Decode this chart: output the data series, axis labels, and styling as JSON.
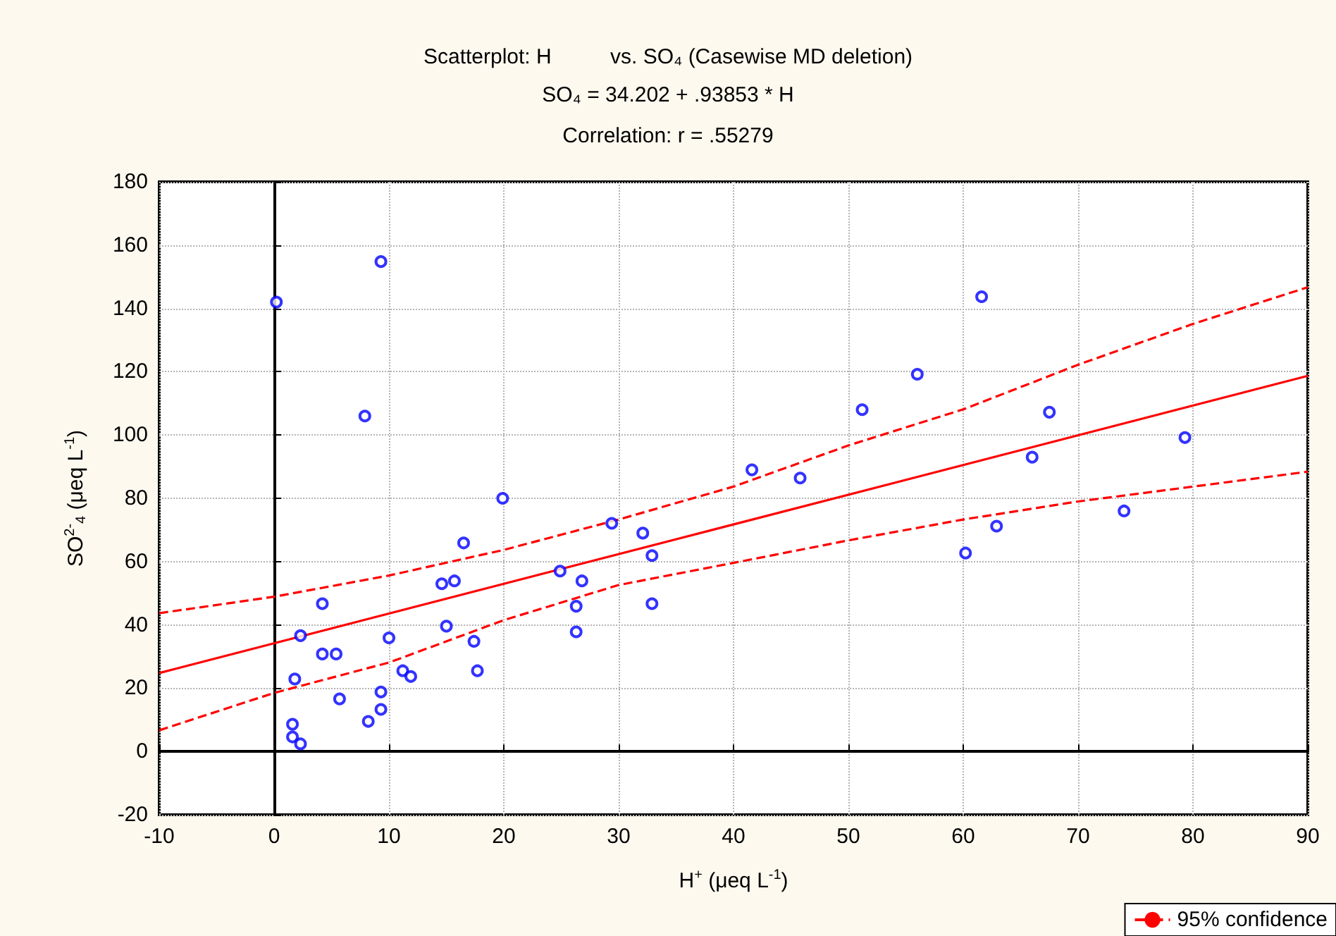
{
  "chart_data": {
    "type": "scatter",
    "title": "Scatterplot: H          vs. SO₄ (Casewise MD deletion)",
    "subtitle": "SO₄ = 34.202 + .93853 * H",
    "annotations": [
      "Correlation: r = .55279"
    ],
    "xlabel": "H$^{+}$ (μeq L$^{-1}$)",
    "ylabel": "SO$^{2-}$$_{4}$ (μeq L$^{-1}$)",
    "x": [
      0.2,
      9.3,
      7.9,
      19.9,
      16.5,
      14.6,
      15.7,
      4.2,
      2.3,
      15.0,
      10.0,
      17.4,
      4.2,
      5.4,
      11.2,
      11.9,
      17.7,
      1.8,
      5.7,
      9.3,
      9.3,
      8.2,
      1.6,
      1.6,
      2.3,
      24.9,
      26.8,
      26.3,
      26.3,
      29.4,
      32.1,
      32.9,
      32.9,
      41.6,
      45.8,
      51.2,
      56.0,
      61.6,
      67.5,
      66.0,
      79.3,
      62.9,
      60.2,
      74.0
    ],
    "xlim": [
      -10,
      90
    ],
    "xticks": [
      -10,
      0,
      10,
      20,
      30,
      40,
      50,
      60,
      70,
      80,
      90
    ],
    "ylim": [
      -20,
      180
    ],
    "yticks": [
      -20,
      0,
      20,
      40,
      60,
      80,
      100,
      120,
      140,
      160,
      180
    ],
    "grid": true,
    "legend": "bottom right",
    "marker": "circle",
    "series": [
      {
        "color": "#0000ff",
        "values": [
          142,
          154.8,
          106,
          80,
          65.9,
          53.0,
          53.9,
          46.7,
          36.6,
          39.6,
          35.9,
          34.8,
          30.8,
          30.8,
          25.5,
          23.7,
          25.5,
          22.9,
          16.6,
          18.8,
          13.3,
          9.5,
          8.6,
          4.6,
          2.4,
          57.0,
          53.9,
          45.9,
          37.8,
          72.1,
          69.0,
          61.9,
          46.7,
          89.0,
          86.4,
          108.0,
          119.2,
          143.7,
          107.2,
          93.0,
          99.2,
          71.2,
          62.7,
          76.0
        ]
      },
      {
        "type": "line",
        "color": "#ff0000",
        "line_style": "solid",
        "marker": "none",
        "x": [
          -10,
          90
        ],
        "values": [
          24.8,
          118.7
        ]
      },
      {
        "type": "line",
        "name": "95% confidence",
        "color": "#ff0000",
        "line_style": "dashed",
        "marker": "none",
        "x": [
          -10,
          0,
          10,
          20,
          30,
          40,
          50,
          60,
          70,
          80,
          90
        ],
        "values": [
          43.7,
          48.9,
          55.6,
          63.7,
          73.3,
          83.7,
          96.7,
          108.1,
          122.2,
          135.1,
          146.7
        ]
      },
      {
        "type": "line",
        "color": "#ff0000",
        "line_style": "dashed",
        "marker": "none",
        "x": [
          -10,
          0,
          10,
          20,
          30,
          40,
          50,
          60,
          70,
          80,
          90
        ],
        "values": [
          6.7,
          18.5,
          28.1,
          41.5,
          52.6,
          59.6,
          66.7,
          73.3,
          79.0,
          83.7,
          88.4
        ]
      }
    ]
  }
}
